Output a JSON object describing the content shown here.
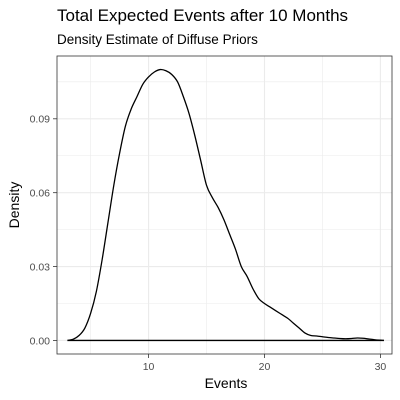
{
  "chart_data": {
    "type": "line",
    "title": "Total Expected Events after 10 Months",
    "subtitle": "Density Estimate of Diffuse Priors",
    "xlabel": "Events",
    "ylabel": "Density",
    "xlim": [
      2.1,
      31.0
    ],
    "ylim": [
      -0.0055,
      0.1155
    ],
    "x_ticks": [
      10,
      20,
      30
    ],
    "y_ticks": [
      0.0,
      0.03,
      0.06,
      0.09
    ],
    "x_tick_labels": [
      "10",
      "20",
      "30"
    ],
    "y_tick_labels": [
      "0.00",
      "0.03",
      "0.06",
      "0.09"
    ],
    "grid": true,
    "legend": "none",
    "colors": {
      "line": "#000000",
      "grid": "#ebebeb",
      "panel_border": "#333333",
      "background": "#ffffff"
    },
    "series": [
      {
        "points": [
          [
            3.0,
            0.0
          ],
          [
            3.5,
            0.0005
          ],
          [
            4.0,
            0.002
          ],
          [
            4.5,
            0.005
          ],
          [
            5.0,
            0.011
          ],
          [
            5.5,
            0.02
          ],
          [
            6.0,
            0.033
          ],
          [
            6.5,
            0.048
          ],
          [
            7.0,
            0.063
          ],
          [
            7.5,
            0.076
          ],
          [
            8.0,
            0.087
          ],
          [
            8.5,
            0.094
          ],
          [
            9.0,
            0.099
          ],
          [
            9.5,
            0.104
          ],
          [
            10.0,
            0.107
          ],
          [
            10.5,
            0.109
          ],
          [
            11.0,
            0.11
          ],
          [
            11.5,
            0.1095
          ],
          [
            12.0,
            0.108
          ],
          [
            12.5,
            0.105
          ],
          [
            13.0,
            0.099
          ],
          [
            13.5,
            0.092
          ],
          [
            14.0,
            0.083
          ],
          [
            14.5,
            0.073
          ],
          [
            15.0,
            0.063
          ],
          [
            15.5,
            0.058
          ],
          [
            16.0,
            0.054
          ],
          [
            16.5,
            0.049
          ],
          [
            17.0,
            0.043
          ],
          [
            17.5,
            0.037
          ],
          [
            18.0,
            0.03
          ],
          [
            18.5,
            0.026
          ],
          [
            19.0,
            0.021
          ],
          [
            19.5,
            0.017
          ],
          [
            20.0,
            0.015
          ],
          [
            20.5,
            0.0135
          ],
          [
            21.0,
            0.012
          ],
          [
            21.5,
            0.0105
          ],
          [
            22.0,
            0.009
          ],
          [
            22.5,
            0.007
          ],
          [
            23.0,
            0.005
          ],
          [
            23.5,
            0.003
          ],
          [
            24.0,
            0.002
          ],
          [
            24.5,
            0.0018
          ],
          [
            25.0,
            0.0015
          ],
          [
            25.5,
            0.0012
          ],
          [
            26.0,
            0.001
          ],
          [
            26.5,
            0.0008
          ],
          [
            27.0,
            0.0007
          ],
          [
            27.5,
            0.0008
          ],
          [
            28.0,
            0.001
          ],
          [
            28.5,
            0.0009
          ],
          [
            29.0,
            0.0006
          ],
          [
            29.5,
            0.0003
          ],
          [
            30.0,
            0.0001
          ],
          [
            30.3,
            0.0
          ]
        ],
        "baseline_range": [
          3.0,
          30.3
        ]
      }
    ]
  }
}
